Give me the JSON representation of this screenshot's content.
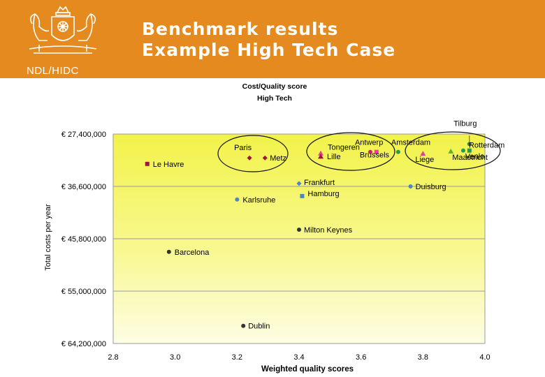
{
  "header": {
    "org_label": "NDL/HIDC",
    "title_line1": "Benchmark results",
    "title_line2": "Example High Tech Case",
    "background": "#e58a1e",
    "logo_icon": "coat-of-arms-icon"
  },
  "chart_data": {
    "type": "scatter",
    "title": "Cost/Quality score",
    "subtitle": "High Tech",
    "xlabel": "Weighted quality scores",
    "ylabel": "Total costs per year",
    "xlim": [
      2.8,
      4.0
    ],
    "ylim": [
      27400000,
      64200000
    ],
    "y_reversed": true,
    "x_ticks": [
      "2.8",
      "3.0",
      "3.2",
      "3.4",
      "3.6",
      "3.8",
      "4.0"
    ],
    "y_ticks": [
      "€ 27,400,000",
      "€ 36,600,000",
      "€ 45,800,000",
      "€ 55,000,000",
      "€ 64,200,000"
    ],
    "y_tick_values": [
      27400000,
      36600000,
      45800000,
      55000000,
      64200000
    ],
    "x_tick_values": [
      2.8,
      3.0,
      3.2,
      3.4,
      3.6,
      3.8,
      4.0
    ],
    "grid": "horizontal",
    "plot_background": "yellow-gradient",
    "points": [
      {
        "label": "Tilburg",
        "x": 3.95,
        "y": 29150000,
        "color": "#1f8f3f",
        "marker": "circle"
      },
      {
        "label": "Paris",
        "x": 3.24,
        "y": 31600000,
        "color": "#a0153e",
        "marker": "diamond"
      },
      {
        "label": "Metz",
        "x": 3.29,
        "y": 31600000,
        "color": "#a0153e",
        "marker": "diamond"
      },
      {
        "label": "Le Havre",
        "x": 2.91,
        "y": 32650000,
        "color": "#a0153e",
        "marker": "square"
      },
      {
        "label": "Tongeren",
        "x": 3.47,
        "y": 30800000,
        "color": "#e040a0",
        "marker": "triangle"
      },
      {
        "label": "Lille",
        "x": 3.47,
        "y": 31350000,
        "color": "#a0153e",
        "marker": "triangle"
      },
      {
        "label": "Antwerp",
        "x": 3.63,
        "y": 30550000,
        "color": "#cc2288",
        "marker": "circle"
      },
      {
        "label": "Brussels",
        "x": 3.65,
        "y": 30550000,
        "color": "#e83e9a",
        "marker": "square"
      },
      {
        "label": "Amsterdam",
        "x": 3.72,
        "y": 30550000,
        "color": "#2a9a4a",
        "marker": "circle"
      },
      {
        "label": "Liege",
        "x": 3.8,
        "y": 30850000,
        "color": "#e040a0",
        "marker": "triangle"
      },
      {
        "label": "Maastricht",
        "x": 3.89,
        "y": 30450000,
        "color": "#6aaf2a",
        "marker": "triangle"
      },
      {
        "label": "Rotterdam",
        "x": 3.93,
        "y": 30300000,
        "color": "#2a9a4a",
        "marker": "circle"
      },
      {
        "label": "Venlo",
        "x": 3.95,
        "y": 30300000,
        "color": "#2a9a4a",
        "marker": "square"
      },
      {
        "label": "Frankfurt",
        "x": 3.4,
        "y": 36100000,
        "color": "#4a86c8",
        "marker": "diamond"
      },
      {
        "label": "Duisburg",
        "x": 3.76,
        "y": 36600000,
        "color": "#4a86c8",
        "marker": "circle"
      },
      {
        "label": "Karlsruhe",
        "x": 3.2,
        "y": 38900000,
        "color": "#4a86c8",
        "marker": "circle"
      },
      {
        "label": "Hamburg",
        "x": 3.41,
        "y": 38300000,
        "color": "#4a86c8",
        "marker": "square"
      },
      {
        "label": "Milton Keynes",
        "x": 3.4,
        "y": 44200000,
        "color": "#333333",
        "marker": "circle"
      },
      {
        "label": "Barcelona",
        "x": 2.98,
        "y": 48100000,
        "color": "#333333",
        "marker": "circle"
      },
      {
        "label": "Dublin",
        "x": 3.22,
        "y": 61100000,
        "color": "#333333",
        "marker": "circle"
      }
    ]
  }
}
